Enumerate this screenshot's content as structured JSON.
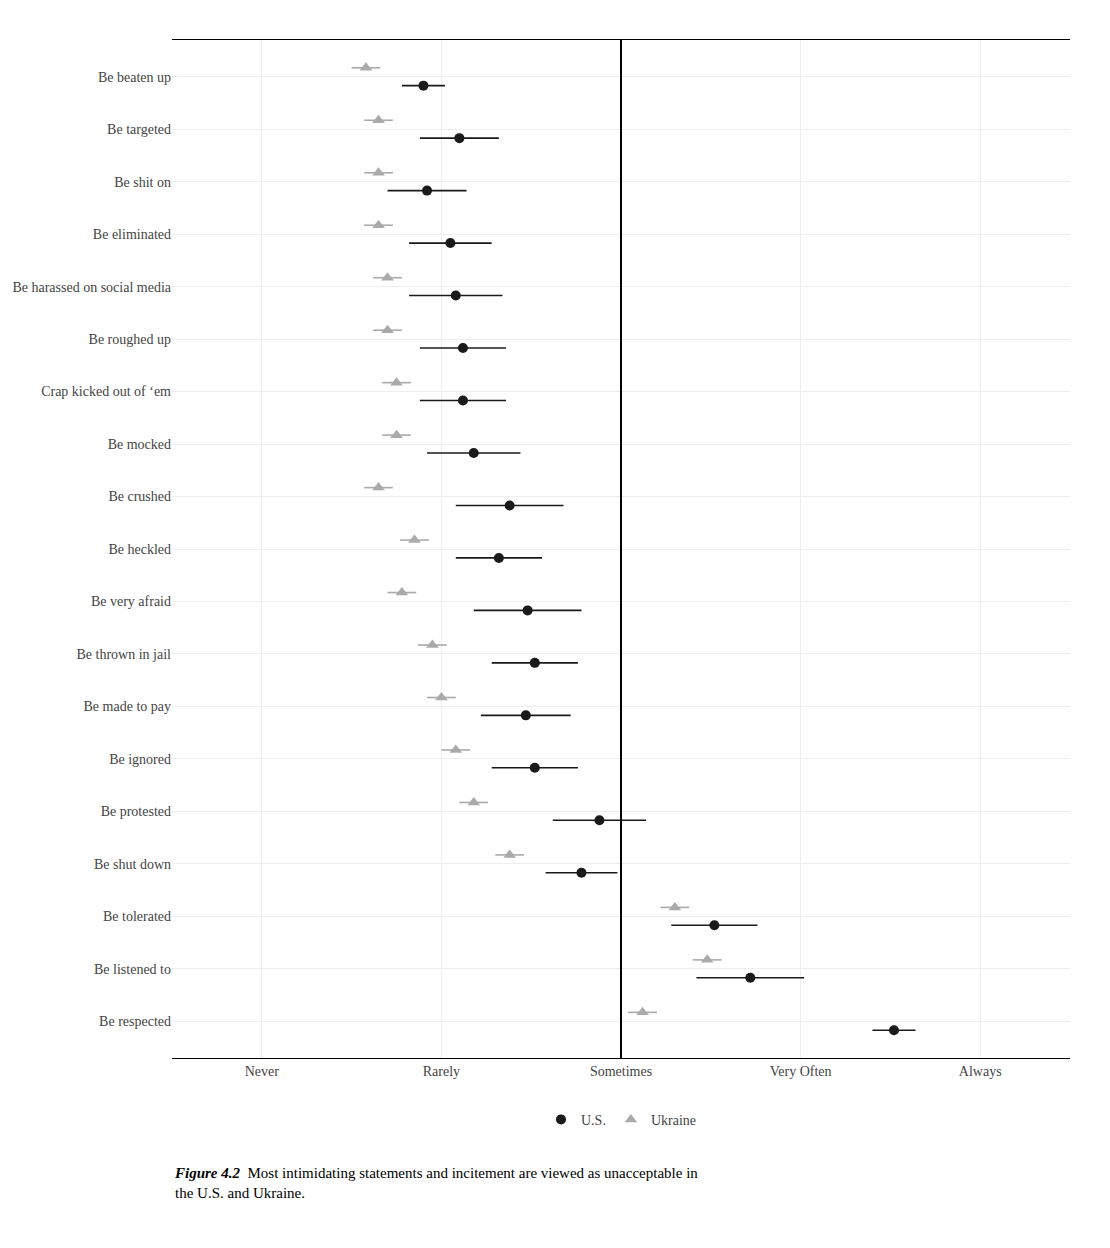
{
  "chart_data": {
    "type": "dot",
    "caption_label": "Figure 4.2",
    "caption": "Most intimidating statements and incitement are viewed as unacceptable in\nthe U.S. and Ukraine.",
    "categories": [
      "Be beaten up",
      "Be targeted",
      "Be shit on",
      "Be eliminated",
      "Be harassed on social media",
      "Be roughed up",
      "Crap kicked out of ‘em",
      "Be mocked",
      "Be crushed",
      "Be heckled",
      "Be very afraid",
      "Be thrown in jail",
      "Be made to pay",
      "Be ignored",
      "Be protested",
      "Be shut down",
      "Be tolerated",
      "Be listened to",
      "Be respected"
    ],
    "series": [
      {
        "name": "U.S.",
        "color": "#1a1a1a",
        "marker": "circle",
        "values": [
          1.9,
          2.1,
          1.92,
          2.05,
          2.08,
          2.12,
          2.12,
          2.18,
          2.38,
          2.32,
          2.48,
          2.52,
          2.47,
          2.52,
          2.88,
          2.78,
          3.52,
          3.72,
          4.52
        ],
        "lo": [
          1.78,
          1.88,
          1.7,
          1.82,
          1.82,
          1.88,
          1.88,
          1.92,
          2.08,
          2.08,
          2.18,
          2.28,
          2.22,
          2.28,
          2.62,
          2.58,
          3.28,
          3.42,
          4.4
        ],
        "hi": [
          2.02,
          2.32,
          2.14,
          2.28,
          2.34,
          2.36,
          2.36,
          2.44,
          2.68,
          2.56,
          2.78,
          2.76,
          2.72,
          2.76,
          3.14,
          2.98,
          3.76,
          4.02,
          4.64
        ]
      },
      {
        "name": "Ukraine",
        "color": "#aaaaaa",
        "marker": "triangle-up",
        "values": [
          1.58,
          1.65,
          1.65,
          1.65,
          1.7,
          1.7,
          1.75,
          1.75,
          1.65,
          1.85,
          1.78,
          1.95,
          2.0,
          2.08,
          2.18,
          2.38,
          3.3,
          3.48,
          3.12
        ],
        "lo": [
          1.5,
          1.57,
          1.57,
          1.57,
          1.62,
          1.62,
          1.67,
          1.67,
          1.57,
          1.77,
          1.7,
          1.87,
          1.92,
          2.0,
          2.1,
          2.3,
          3.22,
          3.4,
          3.04
        ],
        "hi": [
          1.66,
          1.73,
          1.73,
          1.73,
          1.78,
          1.78,
          1.83,
          1.83,
          1.73,
          1.93,
          1.86,
          2.03,
          2.08,
          2.16,
          2.26,
          2.46,
          3.38,
          3.56,
          3.2
        ]
      }
    ],
    "xlim": [
      0.5,
      5.5
    ],
    "xticks": [
      {
        "value": 1,
        "label": "Never"
      },
      {
        "value": 2,
        "label": "Rarely"
      },
      {
        "value": 3,
        "label": "Sometimes"
      },
      {
        "value": 4,
        "label": "Very Often"
      },
      {
        "value": 5,
        "label": "Always"
      }
    ],
    "reference_line": 3.0,
    "grid": true,
    "legend": "bottom"
  }
}
